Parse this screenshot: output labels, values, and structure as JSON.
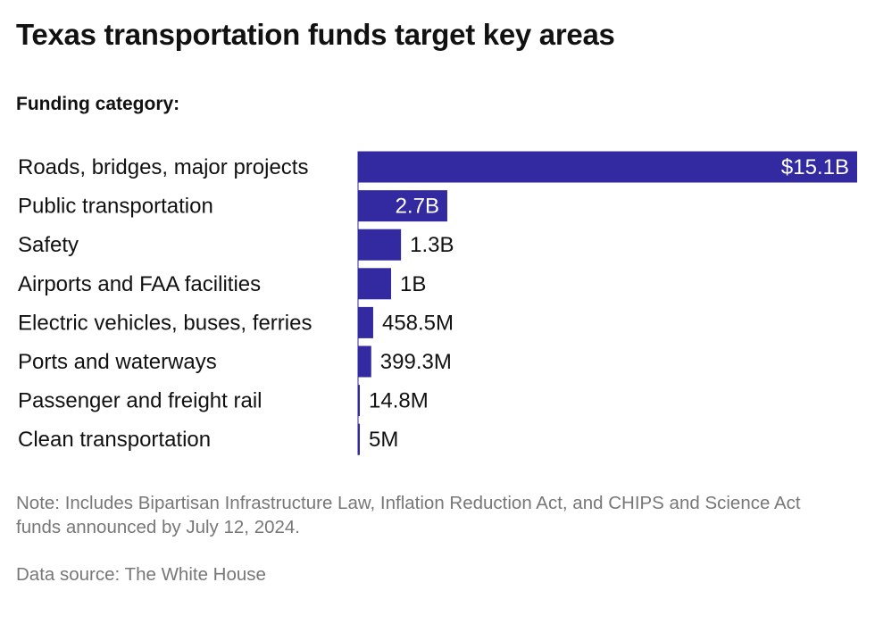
{
  "title": "Texas transportation funds target key areas",
  "subtitle": "Funding category:",
  "note": "Note: Includes Bipartisan Infrastructure Law, Inflation Reduction Act, and CHIPS and Science Act funds announced by July 12, 2024.",
  "source": "Data source: The White House",
  "colors": {
    "bar": "#3329A0",
    "label_inside": "#ffffff",
    "label_outside": "#111111",
    "text_muted": "#777777"
  },
  "chart_data": {
    "type": "bar",
    "orientation": "horizontal",
    "categories": [
      "Roads, bridges, major projects",
      "Public transportation",
      "Safety",
      "Airports and FAA facilities",
      "Electric vehicles, buses, ferries",
      "Ports and waterways",
      "Passenger and freight rail",
      "Clean transportation"
    ],
    "values": [
      15100000000,
      2700000000,
      1300000000,
      1000000000,
      458500000,
      399300000,
      14800000,
      5000000
    ],
    "value_labels": [
      "$15.1B",
      "2.7B",
      "1.3B",
      "1B",
      "458.5M",
      "399.3M",
      "14.8M",
      "5M"
    ],
    "label_inside": [
      true,
      true,
      false,
      false,
      false,
      false,
      false,
      false
    ],
    "title": "Texas transportation funds target key areas",
    "xlabel": "",
    "ylabel": "",
    "xlim": [
      0,
      15100000000
    ],
    "grid": false,
    "legend": "none"
  }
}
